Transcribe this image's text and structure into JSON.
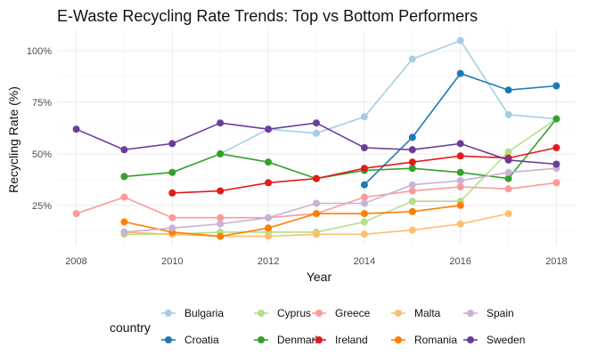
{
  "chart_data": {
    "type": "line",
    "title": "E-Waste Recycling Rate Trends: Top vs Bottom Performers",
    "xlabel": "Year",
    "ylabel": "Recycling Rate (%)",
    "legend_title": "country",
    "legend_position": "bottom",
    "grid": true,
    "xlim": [
      2007.6,
      2018.4
    ],
    "ylim": [
      0.055,
      1.1
    ],
    "x_ticks": [
      2008,
      2010,
      2012,
      2014,
      2016,
      2018
    ],
    "y_ticks": [
      0.25,
      0.5,
      0.75,
      1.0
    ],
    "y_tick_labels": [
      "25%",
      "50%",
      "75%",
      "100%"
    ],
    "series": [
      {
        "name": "Bulgaria",
        "color": "#a6cee3",
        "points": [
          [
            2011,
            0.5
          ],
          [
            2012,
            0.62
          ],
          [
            2013,
            0.6
          ],
          [
            2014,
            0.68
          ],
          [
            2015,
            0.96
          ],
          [
            2016,
            1.05
          ],
          [
            2017,
            0.69
          ],
          [
            2018,
            0.67
          ]
        ]
      },
      {
        "name": "Croatia",
        "color": "#1f78b4",
        "points": [
          [
            2014,
            0.35
          ],
          [
            2015,
            0.58
          ],
          [
            2016,
            0.89
          ],
          [
            2017,
            0.81
          ],
          [
            2018,
            0.83
          ]
        ]
      },
      {
        "name": "Cyprus",
        "color": "#b2df8a",
        "points": [
          [
            2009,
            0.11
          ],
          [
            2010,
            0.11
          ],
          [
            2011,
            0.12
          ],
          [
            2012,
            0.12
          ],
          [
            2013,
            0.12
          ],
          [
            2014,
            0.17
          ],
          [
            2015,
            0.27
          ],
          [
            2016,
            0.27
          ],
          [
            2017,
            0.51
          ],
          [
            2018,
            0.67
          ]
        ]
      },
      {
        "name": "Denmark",
        "color": "#33a02c",
        "points": [
          [
            2009,
            0.39
          ],
          [
            2010,
            0.41
          ],
          [
            2011,
            0.5
          ],
          [
            2012,
            0.46
          ],
          [
            2013,
            0.38
          ],
          [
            2014,
            0.42
          ],
          [
            2015,
            0.43
          ],
          [
            2016,
            0.41
          ],
          [
            2017,
            0.38
          ],
          [
            2018,
            0.67
          ]
        ]
      },
      {
        "name": "Greece",
        "color": "#fb9a99",
        "points": [
          [
            2008,
            0.21
          ],
          [
            2009,
            0.29
          ],
          [
            2010,
            0.19
          ],
          [
            2011,
            0.19
          ],
          [
            2012,
            0.19
          ],
          [
            2013,
            0.21
          ],
          [
            2014,
            0.29
          ],
          [
            2015,
            0.32
          ],
          [
            2016,
            0.34
          ],
          [
            2017,
            0.33
          ],
          [
            2018,
            0.36
          ]
        ]
      },
      {
        "name": "Ireland",
        "color": "#e31a1c",
        "points": [
          [
            2010,
            0.31
          ],
          [
            2011,
            0.32
          ],
          [
            2012,
            0.36
          ],
          [
            2013,
            0.38
          ],
          [
            2014,
            0.43
          ],
          [
            2015,
            0.46
          ],
          [
            2016,
            0.49
          ],
          [
            2017,
            0.48
          ],
          [
            2018,
            0.53
          ]
        ]
      },
      {
        "name": "Malta",
        "color": "#fdbf6f",
        "points": [
          [
            2009,
            0.12
          ],
          [
            2010,
            0.11
          ],
          [
            2011,
            0.1
          ],
          [
            2012,
            0.1
          ],
          [
            2013,
            0.11
          ],
          [
            2014,
            0.11
          ],
          [
            2015,
            0.13
          ],
          [
            2016,
            0.16
          ],
          [
            2017,
            0.21
          ]
        ]
      },
      {
        "name": "Romania",
        "color": "#ff7f00",
        "points": [
          [
            2009,
            0.17
          ],
          [
            2010,
            0.12
          ],
          [
            2011,
            0.1
          ],
          [
            2012,
            0.14
          ],
          [
            2013,
            0.21
          ],
          [
            2014,
            0.21
          ],
          [
            2015,
            0.22
          ],
          [
            2016,
            0.25
          ]
        ]
      },
      {
        "name": "Spain",
        "color": "#cab2d6",
        "points": [
          [
            2009,
            0.12
          ],
          [
            2010,
            0.14
          ],
          [
            2011,
            0.16
          ],
          [
            2012,
            0.19
          ],
          [
            2013,
            0.26
          ],
          [
            2014,
            0.26
          ],
          [
            2015,
            0.35
          ],
          [
            2016,
            0.37
          ],
          [
            2017,
            0.41
          ],
          [
            2018,
            0.43
          ]
        ]
      },
      {
        "name": "Sweden",
        "color": "#6a3d9a",
        "points": [
          [
            2008,
            0.62
          ],
          [
            2009,
            0.52
          ],
          [
            2010,
            0.55
          ],
          [
            2011,
            0.65
          ],
          [
            2012,
            0.62
          ],
          [
            2013,
            0.65
          ],
          [
            2014,
            0.53
          ],
          [
            2015,
            0.52
          ],
          [
            2016,
            0.55
          ],
          [
            2017,
            0.47
          ],
          [
            2018,
            0.45
          ]
        ]
      }
    ]
  }
}
